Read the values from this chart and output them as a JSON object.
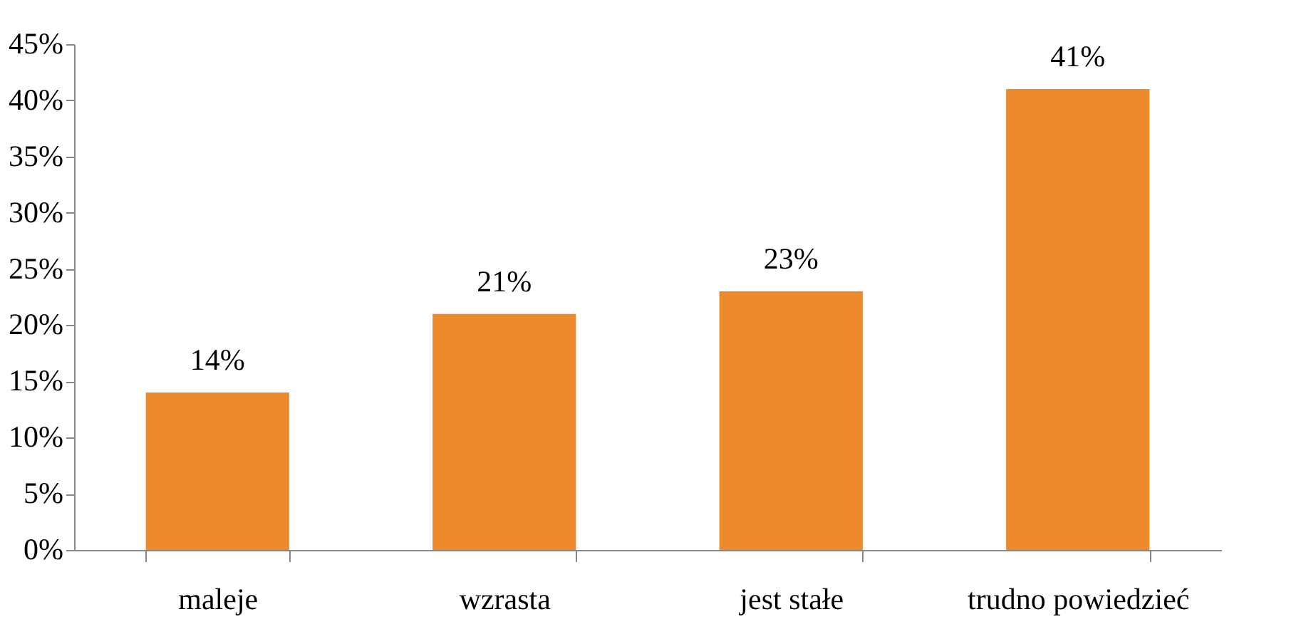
{
  "chart_data": {
    "type": "bar",
    "categories": [
      "maleje",
      "wzrasta",
      "jest stałe",
      "trudno powiedzieć"
    ],
    "values": [
      14,
      21,
      23,
      41
    ],
    "value_labels": [
      "14%",
      "21%",
      "23%",
      "41%"
    ],
    "color": "#ee8a2e",
    "ylim": [
      0,
      45
    ],
    "yticks": [
      {
        "value": 0,
        "label": "0%"
      },
      {
        "value": 5,
        "label": "5%"
      },
      {
        "value": 10,
        "label": "10%"
      },
      {
        "value": 15,
        "label": "15%"
      },
      {
        "value": 20,
        "label": "20%"
      },
      {
        "value": 25,
        "label": "25%"
      },
      {
        "value": 30,
        "label": "30%"
      },
      {
        "value": 35,
        "label": "35%"
      },
      {
        "value": 40,
        "label": "40%"
      },
      {
        "value": 45,
        "label": "45%"
      }
    ],
    "grid": false
  }
}
